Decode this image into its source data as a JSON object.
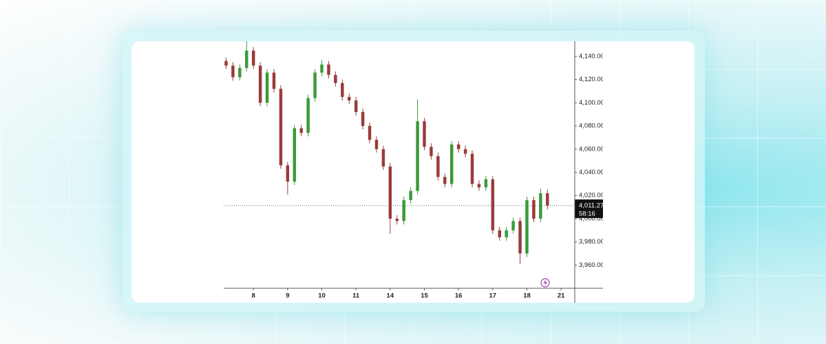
{
  "chart_data": {
    "type": "candlestick",
    "x": [
      -0.8,
      -0.6,
      -0.4,
      -0.2,
      0,
      0.2,
      0.4,
      0.6,
      0.8,
      1,
      1.2,
      1.4,
      1.6,
      1.8,
      2,
      2.2,
      2.4,
      2.6,
      2.8,
      3,
      3.2,
      3.4,
      3.6,
      3.8,
      4,
      4.2,
      4.4,
      4.6,
      4.8,
      5,
      5.2,
      5.4,
      5.6,
      5.8,
      6,
      6.2,
      6.4,
      6.6,
      6.8,
      7,
      7.2,
      7.4,
      7.6,
      7.8,
      8,
      8.2,
      8.4,
      8.6
    ],
    "open": [
      4136,
      4132,
      4122,
      4130,
      4145,
      4132,
      4100,
      4126,
      4112,
      4046,
      4032,
      4078,
      4074,
      4104,
      4126,
      4133,
      4124,
      4117,
      4105,
      4102,
      4092,
      4080,
      4068,
      4060,
      4045,
      4000,
      3998,
      4016,
      4024,
      4084,
      4062,
      4054,
      4036,
      4030,
      4064,
      4060,
      4056,
      4030,
      4027,
      4034,
      3990,
      3984,
      3990,
      3998,
      3970,
      4016,
      4000,
      4022
    ],
    "high": [
      4139,
      4135,
      4133,
      4153,
      4148,
      4135,
      4129,
      4129,
      4115,
      4049,
      4081,
      4081,
      4107,
      4129,
      4137,
      4136,
      4127,
      4120,
      4108,
      4105,
      4095,
      4083,
      4071,
      4063,
      4048,
      4003,
      4019,
      4027,
      4103,
      4087,
      4065,
      4057,
      4039,
      4067,
      4067,
      4063,
      4059,
      4033,
      4037,
      4037,
      3993,
      3993,
      4001,
      4001,
      4019,
      4019,
      4026,
      4025
    ],
    "low": [
      4129,
      4119,
      4119,
      4127,
      4129,
      4097,
      4097,
      4109,
      4043,
      4021,
      4029,
      4071,
      4071,
      4101,
      4123,
      4121,
      4114,
      4102,
      4099,
      4089,
      4077,
      4065,
      4057,
      4042,
      3987,
      3995,
      3995,
      4013,
      4021,
      4059,
      4051,
      4033,
      4027,
      4027,
      4057,
      4053,
      4027,
      4024,
      4024,
      3987,
      3981,
      3981,
      3987,
      3961,
      3967,
      3997,
      3997,
      4008
    ],
    "close": [
      4132,
      4122,
      4130,
      4145,
      4132,
      4100,
      4126,
      4112,
      4046,
      4032,
      4078,
      4074,
      4104,
      4126,
      4133,
      4124,
      4117,
      4105,
      4102,
      4092,
      4080,
      4068,
      4060,
      4045,
      4000,
      3998,
      4016,
      4024,
      4084,
      4062,
      4054,
      4036,
      4030,
      4064,
      4060,
      4056,
      4030,
      4027,
      4034,
      3990,
      3984,
      3990,
      3998,
      3970,
      4016,
      4000,
      4022,
      4011.27
    ],
    "up_color": "#3a9a3a",
    "down_color": "#9a3b3b",
    "xlim": [
      -0.87,
      9.4
    ],
    "xticks": [
      {
        "value": 0,
        "label": "8"
      },
      {
        "value": 1,
        "label": "9"
      },
      {
        "value": 2,
        "label": "10"
      },
      {
        "value": 3,
        "label": "11"
      },
      {
        "value": 4,
        "label": "14"
      },
      {
        "value": 5,
        "label": "15"
      },
      {
        "value": 6,
        "label": "16"
      },
      {
        "value": 7,
        "label": "17"
      },
      {
        "value": 8,
        "label": "18"
      },
      {
        "value": 9,
        "label": "21"
      }
    ],
    "ylim": [
      3940,
      4153
    ],
    "yticks": [
      {
        "value": 3960,
        "label": "3,960.00"
      },
      {
        "value": 3980,
        "label": "3,980.00"
      },
      {
        "value": 4000,
        "label": "4,000.00"
      },
      {
        "value": 4020,
        "label": "4,020.00"
      },
      {
        "value": 4040,
        "label": "4,040.00"
      },
      {
        "value": 4060,
        "label": "4,060.00"
      },
      {
        "value": 4080,
        "label": "4,080.00"
      },
      {
        "value": 4100,
        "label": "4,100.00"
      },
      {
        "value": 4120,
        "label": "4,120.00"
      },
      {
        "value": 4140,
        "label": "4,140.00"
      }
    ],
    "last_price": {
      "value": 4011.27,
      "label": "4,011.27"
    },
    "countdown": "58:16"
  }
}
